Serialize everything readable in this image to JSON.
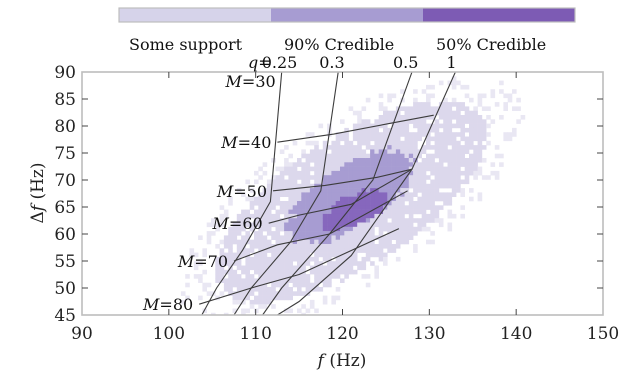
{
  "chart_data": {
    "type": "heatmap",
    "title": "",
    "xlabel": "f (Hz)",
    "ylabel": "Δf (Hz)",
    "xlim": [
      90,
      150
    ],
    "ylim": [
      45,
      90
    ],
    "x_ticks": [
      90,
      100,
      110,
      120,
      130,
      140,
      150
    ],
    "y_ticks": [
      45,
      50,
      55,
      60,
      65,
      70,
      75,
      80,
      85,
      90
    ],
    "colorbar": {
      "placement": "top",
      "levels": [
        {
          "label": "Some support",
          "color": "#d6d3ea"
        },
        {
          "label": "90% Credible",
          "color": "#a79cd2"
        },
        {
          "label": "50% Credible",
          "color": "#7d5bb4"
        }
      ]
    },
    "regions": {
      "some_support": {
        "center": [
          121,
          66
        ],
        "extent": [
          18,
          12
        ],
        "angle_deg": 33,
        "color": "#dcd8ec"
      },
      "credible_90": {
        "center": [
          121,
          67
        ],
        "extent": [
          9,
          6
        ],
        "angle_deg": 33,
        "color": "#a79cd2"
      },
      "credible_50": {
        "center": [
          121.5,
          64.5
        ],
        "extent": [
          4.5,
          3
        ],
        "angle_deg": 25,
        "color": "#8667bd"
      }
    },
    "q_lines": [
      {
        "label": "0.25",
        "points": [
          [
            113.0,
            90.0
          ],
          [
            111.7,
            66.0
          ],
          [
            108.5,
            57.0
          ],
          [
            105.5,
            50.0
          ],
          [
            103.8,
            45.0
          ]
        ]
      },
      {
        "label": "0.3",
        "points": [
          [
            119.5,
            90.0
          ],
          [
            117.5,
            68.0
          ],
          [
            114.0,
            58.5
          ],
          [
            109.5,
            50.0
          ],
          [
            107.5,
            45.0
          ]
        ]
      },
      {
        "label": "0.5",
        "points": [
          [
            128.0,
            90.0
          ],
          [
            123.5,
            70.0
          ],
          [
            118.5,
            60.0
          ],
          [
            113.0,
            50.0
          ],
          [
            110.8,
            45.0
          ]
        ]
      },
      {
        "label": "1",
        "points": [
          [
            133.0,
            90.0
          ],
          [
            128.0,
            72.0
          ],
          [
            121.0,
            56.0
          ],
          [
            115.0,
            47.5
          ],
          [
            112.5,
            45.0
          ]
        ]
      }
    ],
    "m_lines": [
      {
        "label": "30",
        "points": [
          [
            113.0,
            90.0
          ],
          [
            119.5,
            90.0
          ],
          [
            128.0,
            90.0
          ],
          [
            133.0,
            90.0
          ]
        ]
      },
      {
        "label": "40",
        "points": [
          [
            112.5,
            77.0
          ],
          [
            119.0,
            78.5
          ],
          [
            125.5,
            80.5
          ],
          [
            130.5,
            82.0
          ]
        ]
      },
      {
        "label": "50",
        "points": [
          [
            112.0,
            68.0
          ],
          [
            118.0,
            69.0
          ],
          [
            124.0,
            70.5
          ],
          [
            128.0,
            72.0
          ]
        ]
      },
      {
        "label": "60",
        "points": [
          [
            111.5,
            62.0
          ],
          [
            115.0,
            63.5
          ],
          [
            121.0,
            65.5
          ],
          [
            128.0,
            72.0
          ]
        ]
      },
      {
        "label": "70",
        "points": [
          [
            107.5,
            55.0
          ],
          [
            112.5,
            58.0
          ],
          [
            118.5,
            60.0
          ],
          [
            127.5,
            68.0
          ]
        ]
      },
      {
        "label": "80",
        "points": [
          [
            103.5,
            47.0
          ],
          [
            109.5,
            50.0
          ],
          [
            115.0,
            52.5
          ],
          [
            126.5,
            61.0
          ]
        ]
      },
      {
        "label": "",
        "points": [
          [
            103.8,
            45.0
          ],
          [
            107.5,
            45.0
          ],
          [
            110.8,
            45.0
          ],
          [
            112.5,
            45.0
          ]
        ]
      }
    ],
    "q_prefix": "q= ",
    "q_label_text": [
      "0.25",
      "0.3",
      "0.5",
      "1"
    ],
    "m_prefix": "M=",
    "m_label_text": [
      "30",
      "40",
      "50",
      "60",
      "70",
      "80"
    ]
  }
}
